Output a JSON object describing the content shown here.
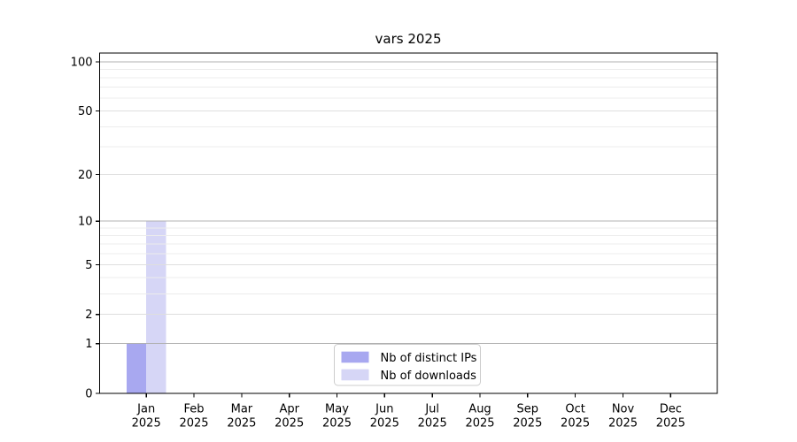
{
  "chart_data": {
    "type": "bar",
    "title": "vars 2025",
    "categories": [
      "Jan",
      "Feb",
      "Mar",
      "Apr",
      "May",
      "Jun",
      "Jul",
      "Aug",
      "Sep",
      "Oct",
      "Nov",
      "Dec"
    ],
    "x_tick_second_line": "2025",
    "series": [
      {
        "name": "Nb of distinct IPs",
        "color": "#a8a8f0",
        "values": [
          1,
          0,
          0,
          0,
          0,
          0,
          0,
          0,
          0,
          0,
          0,
          0
        ]
      },
      {
        "name": "Nb of downloads",
        "color": "#d6d6f6",
        "values": [
          10,
          0,
          0,
          0,
          0,
          0,
          0,
          0,
          0,
          0,
          0,
          0
        ]
      }
    ],
    "xlabel": "",
    "ylabel": "",
    "yscale": "log1p",
    "ylim": [
      0,
      113
    ],
    "y_ticks": [
      {
        "value": 0,
        "label": "0"
      },
      {
        "value": 1,
        "label": "1"
      },
      {
        "value": 2,
        "label": "2"
      },
      {
        "value": 5,
        "label": "5"
      },
      {
        "value": 10,
        "label": "10"
      },
      {
        "value": 20,
        "label": "20"
      },
      {
        "value": 50,
        "label": "50"
      },
      {
        "value": 100,
        "label": "100"
      }
    ],
    "grid": {
      "on": true,
      "major_values": [
        1,
        10,
        100
      ],
      "labeled_minor_values": [
        2,
        5,
        20,
        50
      ],
      "minor_values": [
        3,
        4,
        6,
        7,
        8,
        9,
        30,
        40,
        60,
        70,
        80,
        90
      ],
      "major_color": "#b0b0b0",
      "labeled_minor_color": "#dedede",
      "minor_color": "#ececec"
    },
    "legend": {
      "position": "lower center"
    }
  },
  "colors": {
    "background": "#ffffff",
    "spine": "#000000",
    "tick": "#000000",
    "text": "#000000",
    "legend_border": "#cccccc",
    "legend_background": "#ffffff"
  }
}
